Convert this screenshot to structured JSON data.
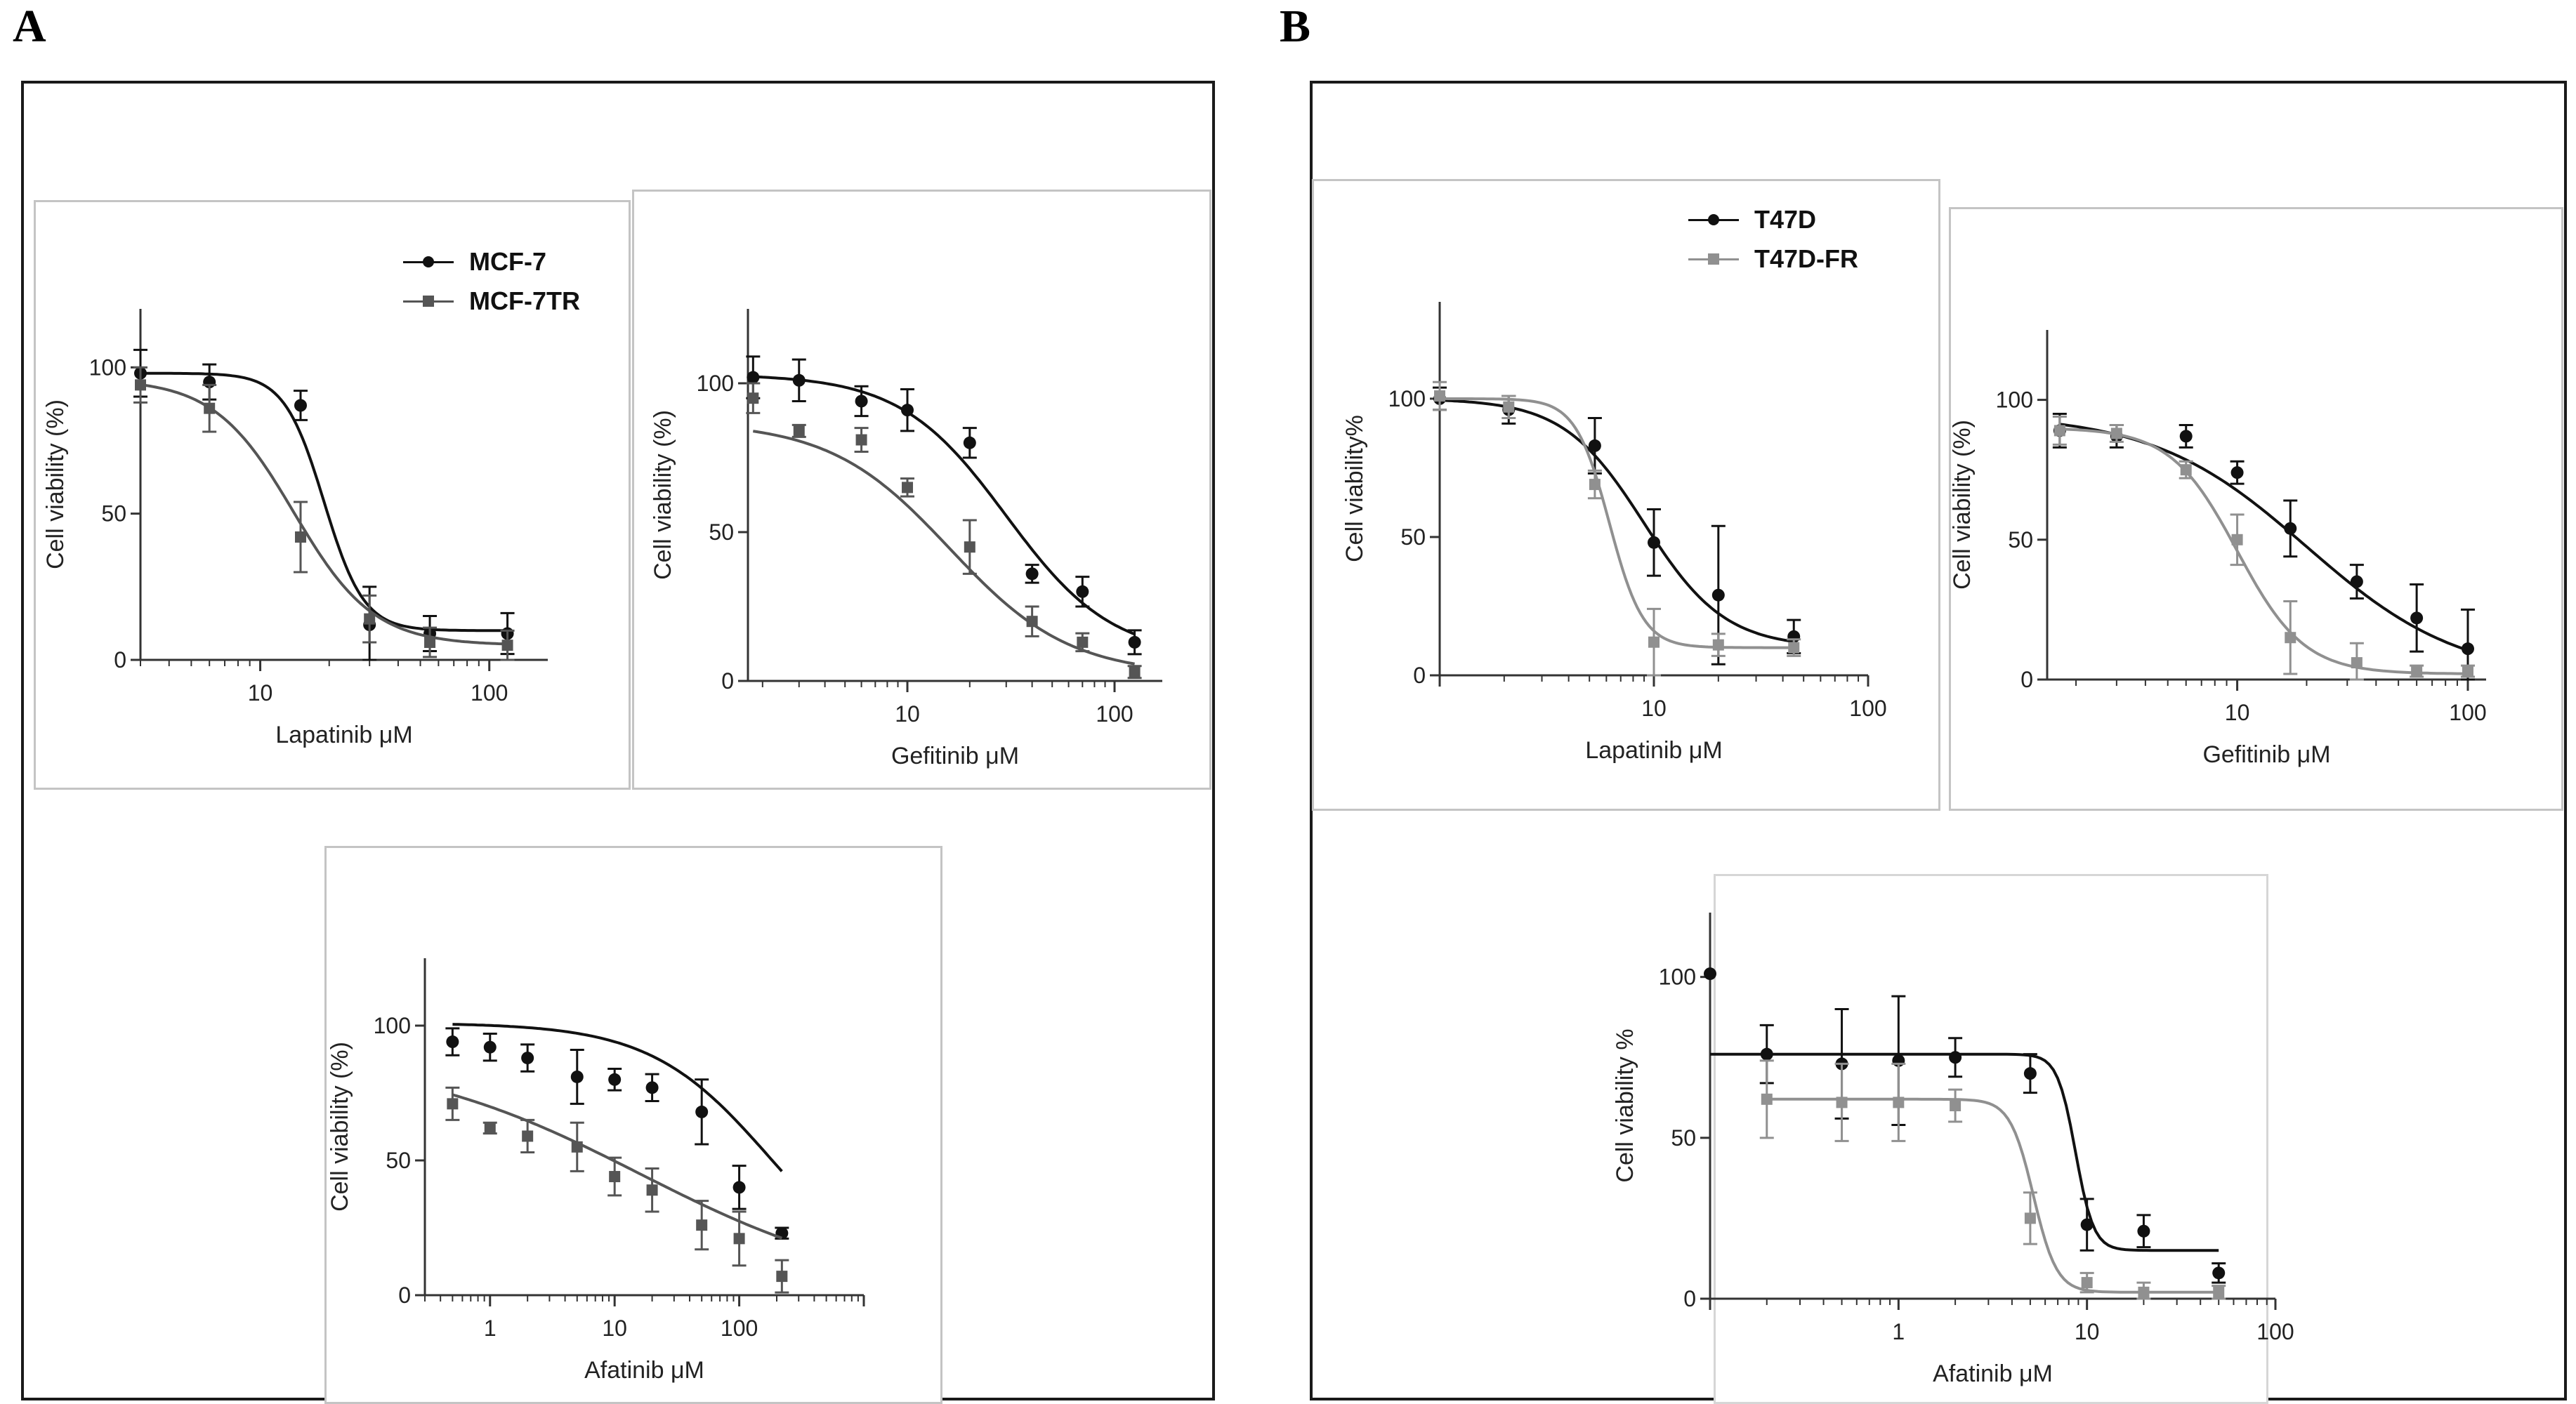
{
  "panels": {
    "a_label": "A",
    "b_label": "B"
  },
  "legends": {
    "A": {
      "items": [
        {
          "name": "MCF-7",
          "color": "#111111"
        },
        {
          "name": "MCF-7TR",
          "color": "#555555"
        }
      ]
    },
    "B": {
      "items": [
        {
          "name": "T47D",
          "color": "#111111"
        },
        {
          "name": "T47D-FR",
          "color": "#909090"
        }
      ]
    }
  },
  "chart_data": [
    {
      "id": "A-lapatinib",
      "type": "line",
      "scale": "log",
      "xlabel": "Lapatinib μM",
      "ylabel": "Cell viability (%)",
      "xlim": [
        3,
        180
      ],
      "ylim": [
        0,
        120
      ],
      "xticks": [
        10,
        100
      ],
      "yticks": [
        0,
        50,
        100
      ],
      "series": [
        {
          "name": "MCF-7",
          "color": "#111111",
          "marker": "circle",
          "x": [
            3,
            6,
            15,
            30,
            55,
            120
          ],
          "y": [
            98,
            95,
            87,
            12,
            9,
            9
          ],
          "err": [
            8,
            6,
            5,
            13,
            6,
            7
          ],
          "fit": {
            "top": 98,
            "bottom": 10,
            "ec50": 19,
            "hill": 5
          }
        },
        {
          "name": "MCF-7TR",
          "color": "#555555",
          "marker": "square",
          "x": [
            3,
            6,
            15,
            30,
            55,
            120
          ],
          "y": [
            94,
            86,
            42,
            14,
            6,
            5
          ],
          "err": [
            6,
            8,
            12,
            8,
            5,
            5
          ],
          "fit": {
            "top": 96,
            "bottom": 5,
            "ec50": 14,
            "hill": 2.5
          }
        }
      ]
    },
    {
      "id": "A-gefitinib",
      "type": "line",
      "scale": "log",
      "xlabel": "Gefitinib μM",
      "ylabel": "Cell viability (%)",
      "xlim": [
        1.7,
        170
      ],
      "ylim": [
        0,
        125
      ],
      "xticks": [
        10,
        100
      ],
      "yticks": [
        0,
        50,
        100
      ],
      "series": [
        {
          "name": "MCF-7",
          "color": "#111111",
          "marker": "circle",
          "x": [
            1.8,
            3,
            6,
            10,
            20,
            40,
            70,
            125
          ],
          "y": [
            102,
            101,
            94,
            91,
            80,
            36,
            30,
            13
          ],
          "err": [
            7,
            7,
            5,
            7,
            5,
            3,
            5,
            4
          ],
          "fit": {
            "top": 103,
            "bottom": 8,
            "ec50": 30,
            "hill": 1.7
          }
        },
        {
          "name": "MCF-7TR",
          "color": "#555555",
          "marker": "square",
          "x": [
            1.8,
            3,
            6,
            10,
            20,
            40,
            70,
            125
          ],
          "y": [
            95,
            84,
            81,
            65,
            45,
            20,
            13,
            3
          ],
          "err": [
            5,
            2,
            4,
            3,
            9,
            5,
            3,
            2
          ],
          "fit": {
            "top": 87,
            "bottom": 2,
            "ec50": 16,
            "hill": 1.5
          }
        }
      ]
    },
    {
      "id": "A-afatinib",
      "type": "line",
      "scale": "log",
      "xlabel": "Afatinib μM",
      "ylabel": "Cell viability (%)",
      "xlim": [
        0.3,
        1000
      ],
      "ylim": [
        0,
        125
      ],
      "xticks": [
        1,
        10,
        100
      ],
      "yticks": [
        0,
        50,
        100
      ],
      "series": [
        {
          "name": "MCF-7",
          "color": "#111111",
          "marker": "circle",
          "x": [
            0.5,
            1,
            2,
            5,
            10,
            20,
            50,
            100,
            220
          ],
          "y": [
            94,
            92,
            88,
            81,
            80,
            77,
            68,
            40,
            23
          ],
          "err": [
            5,
            5,
            5,
            10,
            4,
            5,
            12,
            8,
            2
          ],
          "fit": {
            "top": 101,
            "bottom": 0,
            "ec50": 180,
            "hill": 0.9
          }
        },
        {
          "name": "MCF-7TR",
          "color": "#555555",
          "marker": "square",
          "x": [
            0.5,
            1,
            2,
            5,
            10,
            20,
            50,
            100,
            220
          ],
          "y": [
            71,
            62,
            59,
            55,
            44,
            39,
            26,
            21,
            7
          ],
          "err": [
            6,
            2,
            6,
            9,
            7,
            8,
            9,
            10,
            6
          ],
          "fit": {
            "top": 90,
            "bottom": 0,
            "ec50": 16,
            "hill": 0.45
          }
        }
      ]
    },
    {
      "id": "B-lapatinib",
      "type": "line",
      "scale": "log",
      "xlabel": "Lapatinib μM",
      "ylabel": "Cell viability%",
      "xlim": [
        1,
        100
      ],
      "ylim": [
        0,
        135
      ],
      "xticks": [
        10,
        100
      ],
      "yticks": [
        0,
        50,
        100
      ],
      "series": [
        {
          "name": "T47D",
          "color": "#111111",
          "marker": "circle",
          "x": [
            1,
            2.1,
            5.3,
            10,
            20,
            45
          ],
          "y": [
            100,
            96,
            83,
            48,
            29,
            14
          ],
          "err": [
            4,
            5,
            10,
            12,
            25,
            6
          ],
          "fit": {
            "top": 100,
            "bottom": 10,
            "ec50": 9,
            "hill": 2.3
          }
        },
        {
          "name": "T47D-FR",
          "color": "#909090",
          "marker": "square",
          "x": [
            1,
            2.1,
            5.3,
            10,
            20,
            45
          ],
          "y": [
            101,
            97,
            69,
            12,
            11,
            10
          ],
          "err": [
            5,
            4,
            5,
            12,
            4,
            3
          ],
          "fit": {
            "top": 100,
            "bottom": 10,
            "ec50": 6.2,
            "hill": 5.5
          }
        }
      ]
    },
    {
      "id": "B-gefitinib",
      "type": "line",
      "scale": "log",
      "xlabel": "Gefitinib μM",
      "ylabel": "Cell viability (%)",
      "xlim": [
        1.5,
        120
      ],
      "ylim": [
        0,
        125
      ],
      "xticks": [
        10,
        100
      ],
      "yticks": [
        0,
        50,
        100
      ],
      "series": [
        {
          "name": "T47D",
          "color": "#111111",
          "marker": "circle",
          "x": [
            1.7,
            3,
            6,
            10,
            17,
            33,
            60,
            100
          ],
          "y": [
            89,
            87,
            87,
            74,
            54,
            35,
            22,
            11
          ],
          "err": [
            6,
            4,
            4,
            4,
            10,
            6,
            12,
            14
          ],
          "fit": {
            "top": 95,
            "bottom": 0,
            "ec50": 20,
            "hill": 1.3
          }
        },
        {
          "name": "T47D-FR",
          "color": "#909090",
          "marker": "square",
          "x": [
            1.7,
            3,
            6,
            10,
            17,
            33,
            60,
            100
          ],
          "y": [
            89,
            88,
            75,
            50,
            15,
            6,
            3,
            3
          ],
          "err": [
            5,
            3,
            3,
            9,
            13,
            7,
            2,
            2
          ],
          "fit": {
            "top": 90,
            "bottom": 2,
            "ec50": 10,
            "hill": 3
          }
        }
      ]
    },
    {
      "id": "B-afatinib",
      "type": "line",
      "scale": "log",
      "xlabel": "Afatinib μM",
      "ylabel": "Cell viability %",
      "xlim": [
        0.1,
        100
      ],
      "ylim": [
        0,
        120
      ],
      "xticks": [
        1,
        10,
        100
      ],
      "yticks": [
        0,
        50,
        100
      ],
      "series": [
        {
          "name": "T47D",
          "color": "#111111",
          "marker": "circle",
          "x": [
            0.1,
            0.2,
            0.5,
            1,
            2,
            5,
            10,
            20,
            50
          ],
          "y": [
            101,
            76,
            73,
            74,
            75,
            70,
            23,
            21,
            8
          ],
          "err": [
            0,
            9,
            17,
            20,
            6,
            6,
            8,
            5,
            3
          ],
          "fit": {
            "top": 76,
            "bottom": 15,
            "ec50": 8.7,
            "hill": 9
          }
        },
        {
          "name": "T47D-FR",
          "color": "#909090",
          "marker": "square",
          "x": [
            0.2,
            0.5,
            1,
            2,
            5,
            10,
            20,
            50
          ],
          "y": [
            62,
            61,
            61,
            60,
            25,
            5,
            2,
            2
          ],
          "err": [
            12,
            12,
            12,
            5,
            8,
            3,
            3,
            2
          ],
          "fit": {
            "top": 62,
            "bottom": 2,
            "ec50": 5.2,
            "hill": 7
          }
        }
      ]
    }
  ]
}
